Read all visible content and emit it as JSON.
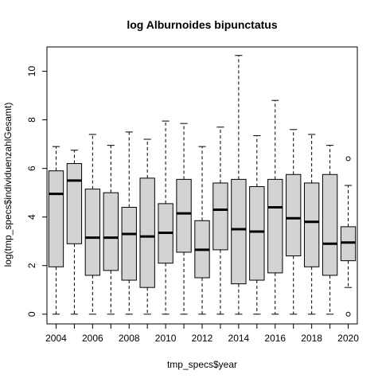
{
  "chart_data": {
    "type": "boxplot",
    "title": "log Alburnoides bipunctatus",
    "xlabel": "tmp_specs$year",
    "ylabel": "log(tmp_specs$individuenzahlGesamt)",
    "ylim": [
      -0.4,
      11
    ],
    "yticks": [
      0,
      2,
      4,
      6,
      8,
      10
    ],
    "xtick_labels": [
      "2004",
      "2006",
      "2008",
      "2010",
      "2012",
      "2014",
      "2016",
      "2018",
      "2020"
    ],
    "categories": [
      "2004",
      "2005",
      "2006",
      "2007",
      "2008",
      "2009",
      "2010",
      "2011",
      "2012",
      "2013",
      "2014",
      "2015",
      "2016",
      "2017",
      "2018",
      "2019",
      "2020"
    ],
    "box_fill": "#d3d3d3",
    "boxes": [
      {
        "year": "2004",
        "min": 0,
        "q1": 1.95,
        "median": 4.95,
        "q3": 5.9,
        "max": 6.9
      },
      {
        "year": "2005",
        "min": 0,
        "q1": 2.9,
        "median": 5.5,
        "q3": 6.2,
        "max": 6.75
      },
      {
        "year": "2006",
        "min": 0,
        "q1": 1.6,
        "median": 3.15,
        "q3": 5.15,
        "max": 7.4
      },
      {
        "year": "2007",
        "min": 0,
        "q1": 1.8,
        "median": 3.15,
        "q3": 5.0,
        "max": 6.95
      },
      {
        "year": "2008",
        "min": 0,
        "q1": 1.4,
        "median": 3.3,
        "q3": 4.4,
        "max": 7.5
      },
      {
        "year": "2009",
        "min": 0,
        "q1": 1.1,
        "median": 3.2,
        "q3": 5.6,
        "max": 7.2
      },
      {
        "year": "2010",
        "min": 0,
        "q1": 2.1,
        "median": 3.35,
        "q3": 4.55,
        "max": 7.95
      },
      {
        "year": "2011",
        "min": 0,
        "q1": 2.55,
        "median": 4.15,
        "q3": 5.55,
        "max": 7.85
      },
      {
        "year": "2012",
        "min": 0,
        "q1": 1.5,
        "median": 2.65,
        "q3": 3.85,
        "max": 6.9
      },
      {
        "year": "2013",
        "min": 0,
        "q1": 2.65,
        "median": 4.3,
        "q3": 5.4,
        "max": 7.7
      },
      {
        "year": "2014",
        "min": 0,
        "q1": 1.25,
        "median": 3.5,
        "q3": 5.55,
        "max": 10.65
      },
      {
        "year": "2015",
        "min": 0,
        "q1": 1.4,
        "median": 3.4,
        "q3": 5.25,
        "max": 7.35
      },
      {
        "year": "2016",
        "min": 0,
        "q1": 1.7,
        "median": 4.4,
        "q3": 5.55,
        "max": 8.8
      },
      {
        "year": "2017",
        "min": 0,
        "q1": 2.4,
        "median": 3.95,
        "q3": 5.75,
        "max": 7.6
      },
      {
        "year": "2018",
        "min": 0,
        "q1": 1.95,
        "median": 3.8,
        "q3": 5.4,
        "max": 7.4
      },
      {
        "year": "2019",
        "min": 0,
        "q1": 1.6,
        "median": 2.9,
        "q3": 5.75,
        "max": 6.95
      },
      {
        "year": "2020",
        "min": 1.1,
        "q1": 2.2,
        "median": 2.95,
        "q3": 3.6,
        "max": 5.3,
        "outliers": [
          0,
          6.4
        ]
      }
    ]
  }
}
